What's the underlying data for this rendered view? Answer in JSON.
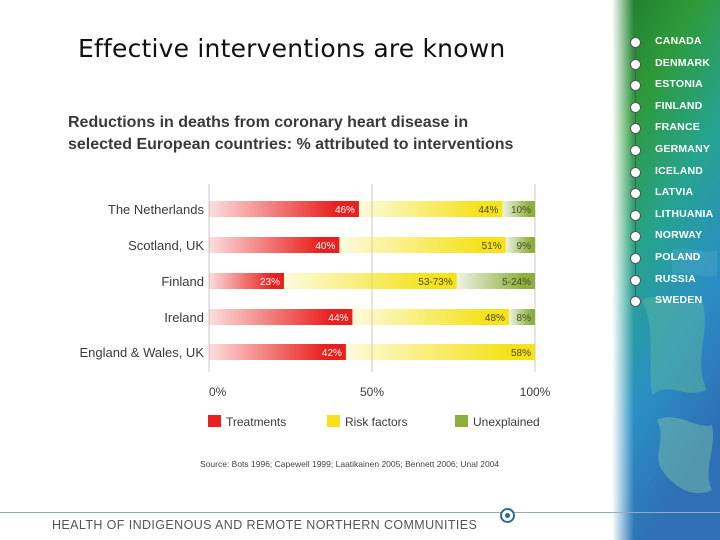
{
  "slide": {
    "title": "Effective interventions are known"
  },
  "chart_data": {
    "type": "bar",
    "stacked": true,
    "orientation": "horizontal",
    "title": "Reductions in deaths from coronary heart disease in selected European countries: % attributed to interventions",
    "title_lines": [
      "Reductions in deaths from coronary heart disease in",
      "selected European countries: % attributed to interventions"
    ],
    "categories": [
      "The Netherlands",
      "Scotland, UK",
      "Finland",
      "Ireland",
      "England & Wales, UK"
    ],
    "series": [
      {
        "name": "Treatments",
        "color": "#e8211f",
        "values": [
          46,
          40,
          23,
          44,
          42
        ],
        "labels": [
          "46%",
          "40%",
          "23%",
          "44%",
          "42%"
        ]
      },
      {
        "name": "Risk factors",
        "color": "#f5e21b",
        "values": [
          44,
          51,
          53,
          48,
          58
        ],
        "labels": [
          "44%",
          "51%",
          "53-73%",
          "48%",
          "58%"
        ]
      },
      {
        "name": "Unexplained",
        "color": "#8cb03c",
        "values": [
          10,
          9,
          24,
          8,
          0
        ],
        "labels": [
          "10%",
          "9%",
          "5-24%",
          "8%",
          ""
        ]
      }
    ],
    "xlim": [
      0,
      100
    ],
    "xticks": [
      "0%",
      "50%",
      "100%"
    ],
    "legend_position": "bottom"
  },
  "source": "Source: Bots 1996; Capewell 1999; Laatikainen 2005; Bennett 2006; Unal 2004",
  "countries": [
    "CANADA",
    "DENMARK",
    "ESTONIA",
    "FINLAND",
    "FRANCE",
    "GERMANY",
    "ICELAND",
    "LATVIA",
    "LITHUANIA",
    "NORWAY",
    "POLAND",
    "RUSSIA",
    "SWEDEN"
  ],
  "footer": {
    "text": "HEALTH OF INDIGENOUS AND REMOTE NORTHERN COMMUNITIES"
  }
}
